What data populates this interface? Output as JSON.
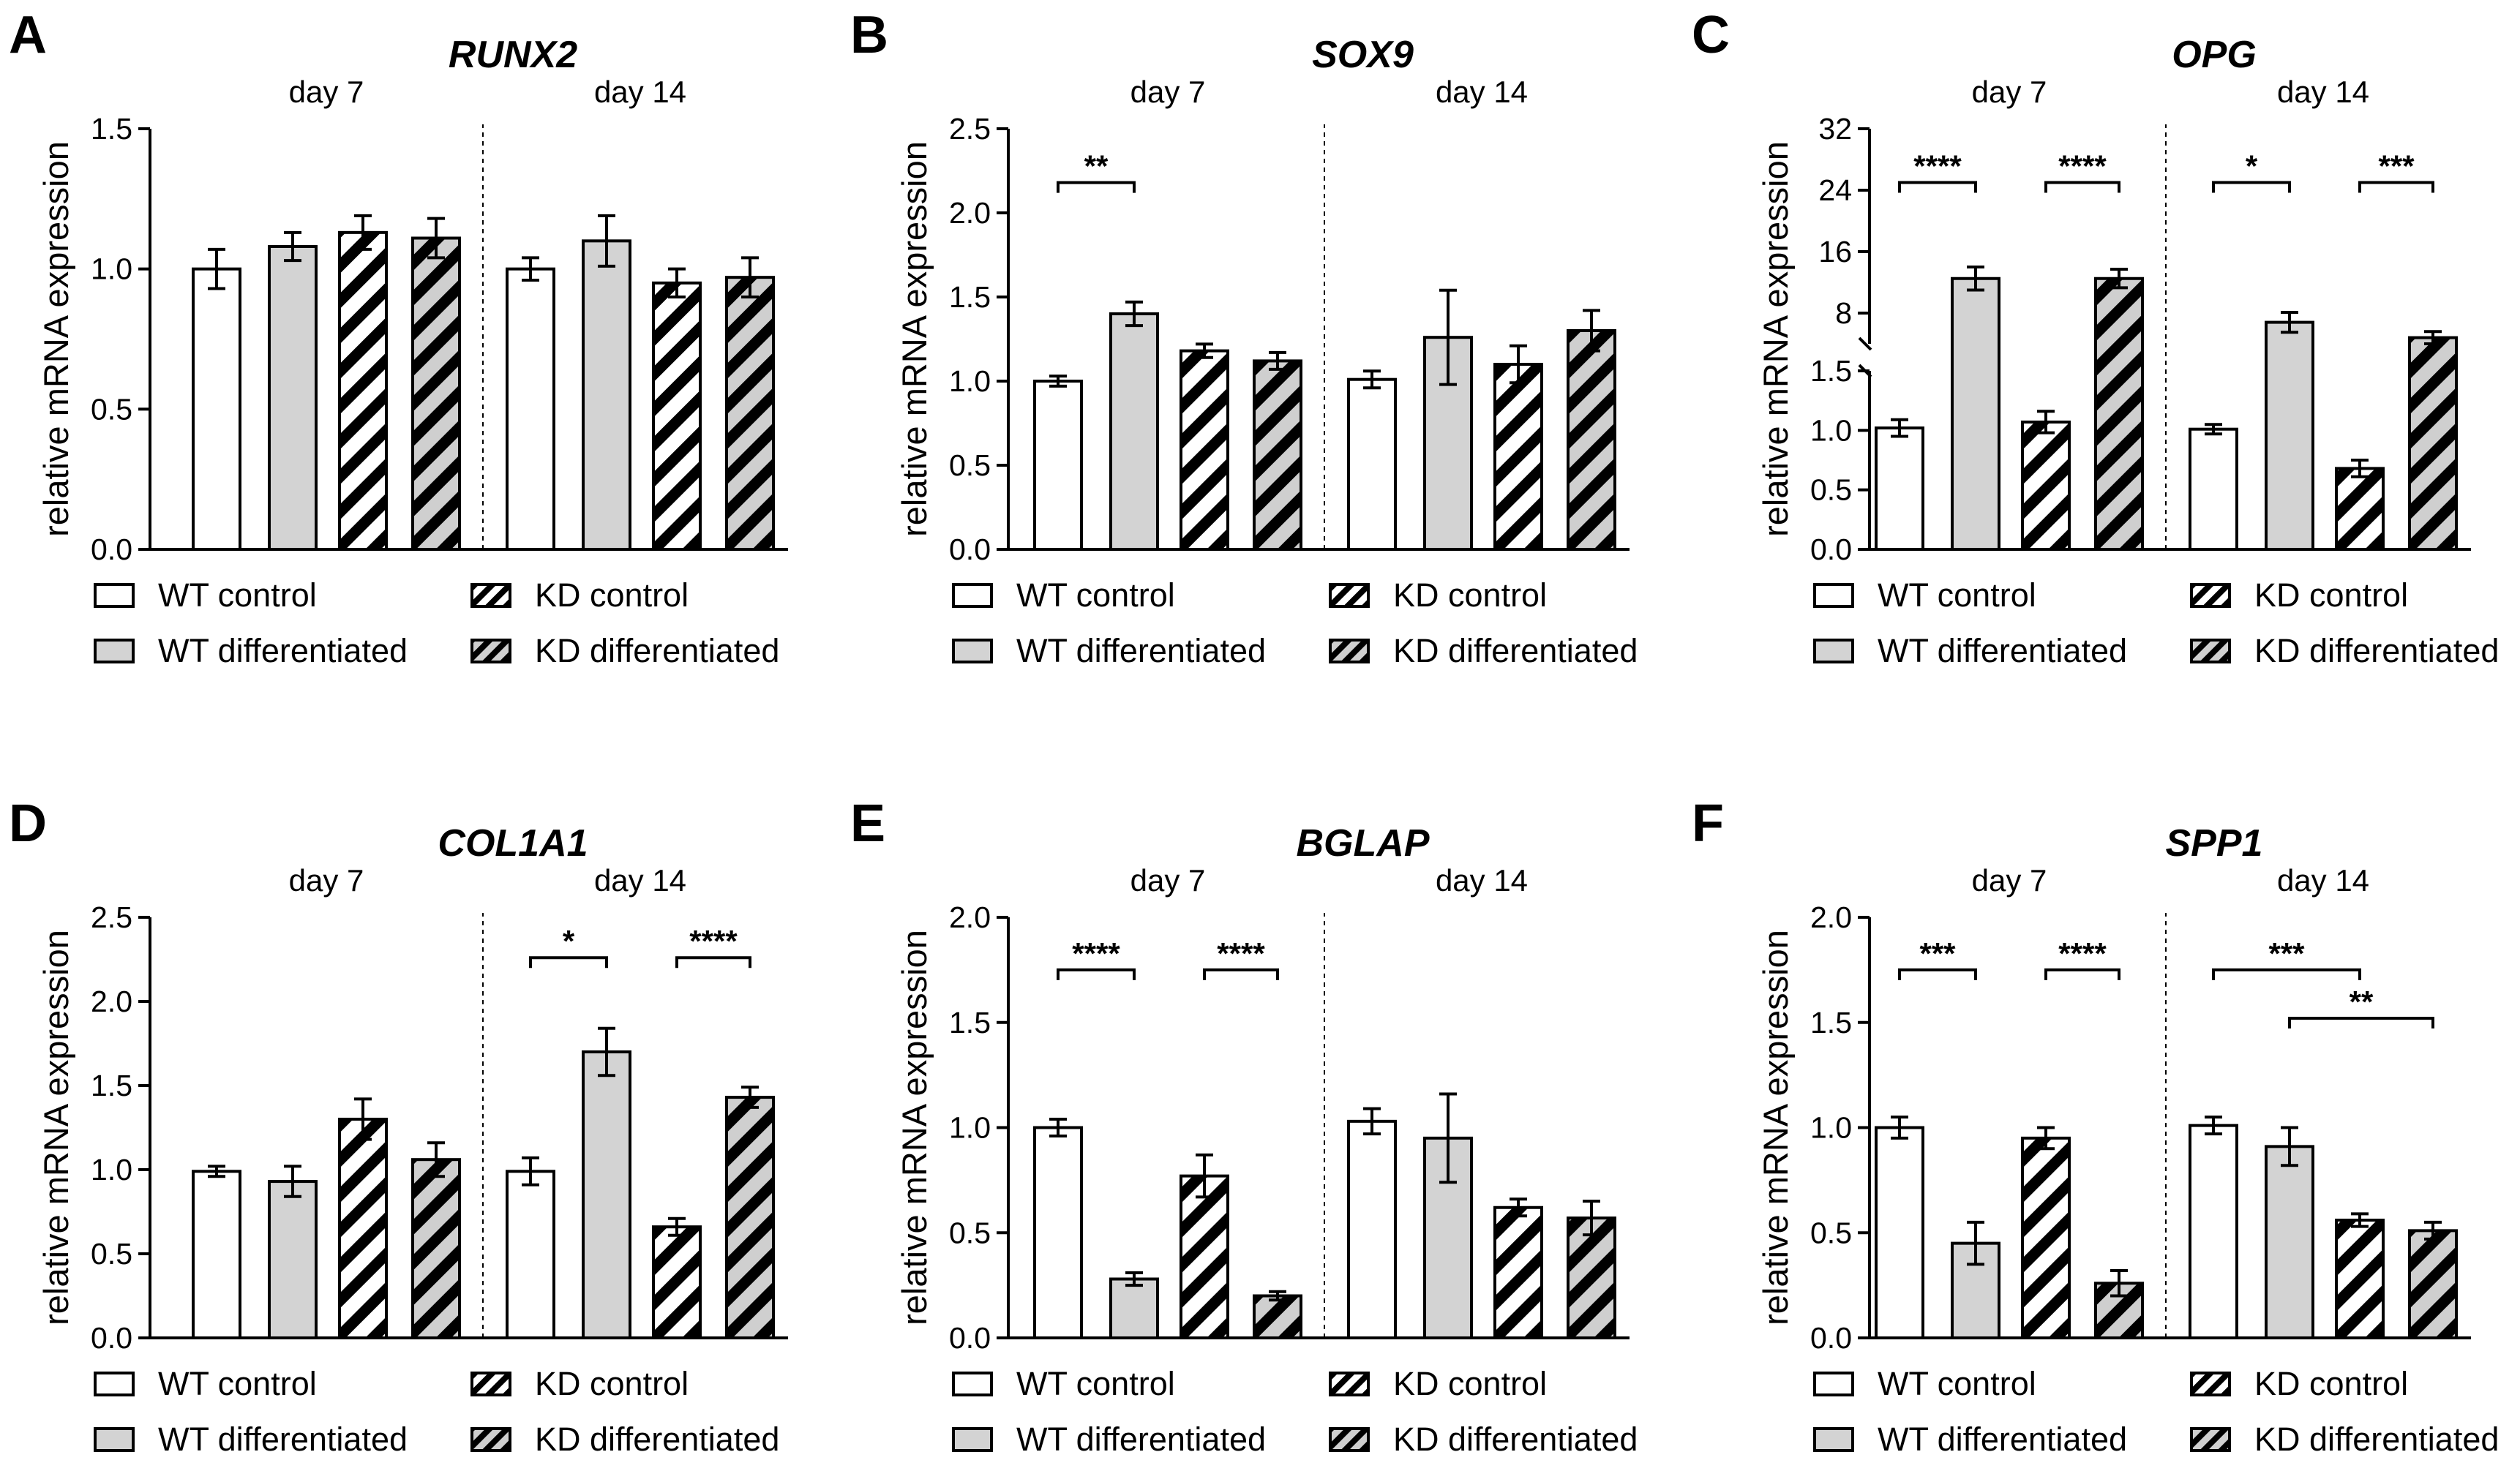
{
  "figure": {
    "legend_labels": [
      "WT control",
      "KD control",
      "WT differentiated",
      "KD differentiated"
    ],
    "y_label": "relative mRNA expression",
    "colors": {
      "axis": "#000000",
      "bar_fill_gray": "#d3d3d3",
      "bar_fill_white": "#ffffff"
    }
  },
  "chart_data": [
    {
      "panel": "A",
      "gene": "RUNX2",
      "type": "bar",
      "ylabel": "relative mRNA expression",
      "groups": [
        "day 7",
        "day 14"
      ],
      "series_names": [
        "WT control",
        "WT differentiated",
        "KD control",
        "KD differentiated"
      ],
      "ylim": [
        0,
        1.5
      ],
      "yticks": [
        {
          "value": 0,
          "label": "0.0"
        },
        {
          "value": 0.5,
          "label": "0.5"
        },
        {
          "value": 1.0,
          "label": "1.0"
        },
        {
          "value": 1.5,
          "label": "1.5"
        }
      ],
      "values": [
        [
          1.0,
          1.08,
          1.13,
          1.11
        ],
        [
          1.0,
          1.1,
          0.95,
          0.97
        ]
      ],
      "errors": [
        [
          0.07,
          0.05,
          0.06,
          0.07
        ],
        [
          0.04,
          0.09,
          0.05,
          0.07
        ]
      ],
      "significance": []
    },
    {
      "panel": "B",
      "gene": "SOX9",
      "type": "bar",
      "ylabel": "relative mRNA expression",
      "groups": [
        "day 7",
        "day 14"
      ],
      "series_names": [
        "WT control",
        "WT differentiated",
        "KD control",
        "KD differentiated"
      ],
      "ylim": [
        0,
        2.5
      ],
      "yticks": [
        {
          "value": 0,
          "label": "0.0"
        },
        {
          "value": 0.5,
          "label": "0.5"
        },
        {
          "value": 1.0,
          "label": "1.0"
        },
        {
          "value": 1.5,
          "label": "1.5"
        },
        {
          "value": 2.0,
          "label": "2.0"
        },
        {
          "value": 2.5,
          "label": "2.5"
        }
      ],
      "values": [
        [
          1.0,
          1.4,
          1.18,
          1.12
        ],
        [
          1.01,
          1.26,
          1.1,
          1.3
        ]
      ],
      "errors": [
        [
          0.03,
          0.07,
          0.04,
          0.05
        ],
        [
          0.05,
          0.28,
          0.11,
          0.12
        ]
      ],
      "significance": [
        {
          "label": "**",
          "group": 0,
          "from": 0,
          "to": 1,
          "y": 2.18
        }
      ]
    },
    {
      "panel": "C",
      "gene": "OPG",
      "type": "bar",
      "broken_axis": true,
      "ylabel": "relative mRNA expression",
      "groups": [
        "day 7",
        "day 14"
      ],
      "series_names": [
        "WT control",
        "WT differentiated",
        "KD control",
        "KD differentiated"
      ],
      "ylim": [
        0,
        32
      ],
      "lower_segment": [
        0,
        1.5
      ],
      "upper_segment": [
        4,
        32
      ],
      "yticks": [
        {
          "value": 0,
          "label": "0.0"
        },
        {
          "value": 0.5,
          "label": "0.5"
        },
        {
          "value": 1.0,
          "label": "1.0"
        },
        {
          "value": 1.5,
          "label": "1.5"
        },
        {
          "value": 8,
          "label": "8"
        },
        {
          "value": 16,
          "label": "16"
        },
        {
          "value": 24,
          "label": "24"
        },
        {
          "value": 32,
          "label": "32"
        }
      ],
      "values": [
        [
          1.02,
          12.5,
          1.07,
          12.5
        ],
        [
          1.01,
          6.8,
          0.68,
          4.8
        ]
      ],
      "errors": [
        [
          0.07,
          1.5,
          0.09,
          1.2
        ],
        [
          0.04,
          1.3,
          0.07,
          0.8
        ]
      ],
      "significance": [
        {
          "label": "****",
          "group": 0,
          "from": 0,
          "to": 1,
          "y": 25
        },
        {
          "label": "****",
          "group": 0,
          "from": 2,
          "to": 3,
          "y": 25
        },
        {
          "label": "*",
          "group": 1,
          "from": 0,
          "to": 1,
          "y": 25
        },
        {
          "label": "***",
          "group": 1,
          "from": 2,
          "to": 3,
          "y": 25
        }
      ]
    },
    {
      "panel": "D",
      "gene": "COL1A1",
      "type": "bar",
      "ylabel": "relative mRNA expression",
      "groups": [
        "day 7",
        "day 14"
      ],
      "series_names": [
        "WT control",
        "WT differentiated",
        "KD control",
        "KD differentiated"
      ],
      "ylim": [
        0,
        2.5
      ],
      "yticks": [
        {
          "value": 0,
          "label": "0.0"
        },
        {
          "value": 0.5,
          "label": "0.5"
        },
        {
          "value": 1.0,
          "label": "1.0"
        },
        {
          "value": 1.5,
          "label": "1.5"
        },
        {
          "value": 2.0,
          "label": "2.0"
        },
        {
          "value": 2.5,
          "label": "2.5"
        }
      ],
      "values": [
        [
          0.99,
          0.93,
          1.3,
          1.06
        ],
        [
          0.99,
          1.7,
          0.66,
          1.43
        ]
      ],
      "errors": [
        [
          0.03,
          0.09,
          0.12,
          0.1
        ],
        [
          0.08,
          0.14,
          0.05,
          0.06
        ]
      ],
      "significance": [
        {
          "label": "*",
          "group": 1,
          "from": 0,
          "to": 1,
          "y": 2.26
        },
        {
          "label": "****",
          "group": 1,
          "from": 2,
          "to": 3,
          "y": 2.26
        }
      ]
    },
    {
      "panel": "E",
      "gene": "BGLAP",
      "type": "bar",
      "ylabel": "relative mRNA expression",
      "groups": [
        "day 7",
        "day 14"
      ],
      "series_names": [
        "WT control",
        "WT differentiated",
        "KD control",
        "KD differentiated"
      ],
      "ylim": [
        0,
        2.0
      ],
      "yticks": [
        {
          "value": 0,
          "label": "0.0"
        },
        {
          "value": 0.5,
          "label": "0.5"
        },
        {
          "value": 1.0,
          "label": "1.0"
        },
        {
          "value": 1.5,
          "label": "1.5"
        },
        {
          "value": 2.0,
          "label": "2.0"
        }
      ],
      "values": [
        [
          1.0,
          0.28,
          0.77,
          0.2
        ],
        [
          1.03,
          0.95,
          0.62,
          0.57
        ]
      ],
      "errors": [
        [
          0.04,
          0.03,
          0.1,
          0.02
        ],
        [
          0.06,
          0.21,
          0.04,
          0.08
        ]
      ],
      "significance": [
        {
          "label": "****",
          "group": 0,
          "from": 0,
          "to": 1,
          "y": 1.75
        },
        {
          "label": "****",
          "group": 0,
          "from": 2,
          "to": 3,
          "y": 1.75
        }
      ]
    },
    {
      "panel": "F",
      "gene": "SPP1",
      "type": "bar",
      "ylabel": "relative mRNA expression",
      "groups": [
        "day 7",
        "day 14"
      ],
      "series_names": [
        "WT control",
        "WT differentiated",
        "KD control",
        "KD differentiated"
      ],
      "ylim": [
        0,
        2.0
      ],
      "yticks": [
        {
          "value": 0,
          "label": "0.0"
        },
        {
          "value": 0.5,
          "label": "0.5"
        },
        {
          "value": 1.0,
          "label": "1.0"
        },
        {
          "value": 1.5,
          "label": "1.5"
        },
        {
          "value": 2.0,
          "label": "2.0"
        }
      ],
      "values": [
        [
          1.0,
          0.45,
          0.95,
          0.26
        ],
        [
          1.01,
          0.91,
          0.56,
          0.51
        ]
      ],
      "errors": [
        [
          0.05,
          0.1,
          0.05,
          0.06
        ],
        [
          0.04,
          0.09,
          0.03,
          0.04
        ]
      ],
      "significance": [
        {
          "label": "***",
          "group": 0,
          "from": 0,
          "to": 1,
          "y": 1.75
        },
        {
          "label": "****",
          "group": 0,
          "from": 2,
          "to": 3,
          "y": 1.75
        },
        {
          "label": "***",
          "group": 1,
          "from": 0,
          "to": 2,
          "y": 1.75
        },
        {
          "label": "**",
          "group": 1,
          "from": 1,
          "to": 3,
          "y": 1.52
        }
      ]
    }
  ]
}
